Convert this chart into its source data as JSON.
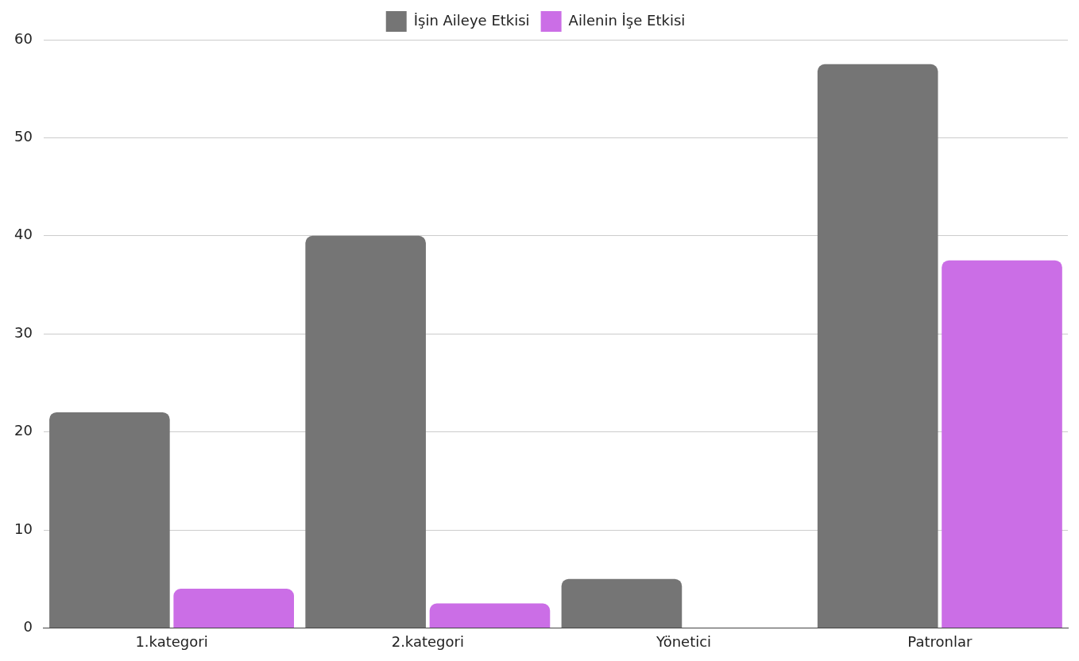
{
  "chart_data": {
    "type": "bar",
    "categories": [
      "1.kategori",
      "2.kategori",
      "Yönetici",
      "Patronlar"
    ],
    "series": [
      {
        "name": "İşin Aileye Etkisi",
        "color": "#757575",
        "values": [
          22,
          40,
          5,
          57.5
        ]
      },
      {
        "name": "Ailenin İşe Etkisi",
        "color": "#cb6ee6",
        "values": [
          4,
          2.5,
          0,
          37.5
        ]
      }
    ],
    "ylim": [
      0,
      60
    ],
    "yticks": [
      0,
      10,
      20,
      30,
      40,
      50,
      60
    ],
    "grid": "y",
    "legend": "top"
  }
}
